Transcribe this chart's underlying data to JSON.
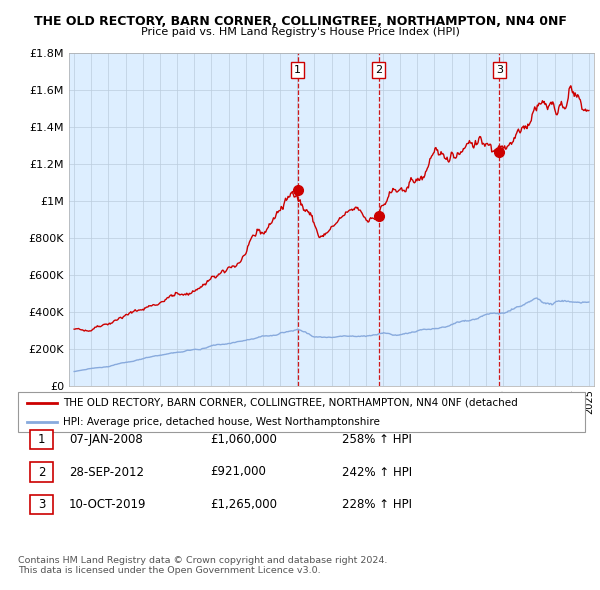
{
  "title": "THE OLD RECTORY, BARN CORNER, COLLINGTREE, NORTHAMPTON, NN4 0NF",
  "subtitle": "Price paid vs. HM Land Registry's House Price Index (HPI)",
  "ylim": [
    0,
    1800000
  ],
  "yticks": [
    0,
    200000,
    400000,
    600000,
    800000,
    1000000,
    1200000,
    1400000,
    1600000,
    1800000
  ],
  "ytick_labels": [
    "£0",
    "£200K",
    "£400K",
    "£600K",
    "£800K",
    "£1M",
    "£1.2M",
    "£1.4M",
    "£1.6M",
    "£1.8M"
  ],
  "sale_dates": [
    2008.03,
    2012.75,
    2019.78
  ],
  "sale_prices": [
    1060000,
    921000,
    1265000
  ],
  "sale_labels": [
    "1",
    "2",
    "3"
  ],
  "red_line_color": "#cc0000",
  "blue_line_color": "#88aadd",
  "vline_color": "#cc0000",
  "grid_color": "#bbccdd",
  "bg_color": "#ddeeff",
  "legend_entries": [
    "THE OLD RECTORY, BARN CORNER, COLLINGTREE, NORTHAMPTON, NN4 0NF (detached",
    "HPI: Average price, detached house, West Northamptonshire"
  ],
  "table_rows": [
    [
      "1",
      "07-JAN-2008",
      "£1,060,000",
      "258% ↑ HPI"
    ],
    [
      "2",
      "28-SEP-2012",
      "£921,000",
      "242% ↑ HPI"
    ],
    [
      "3",
      "10-OCT-2019",
      "£1,265,000",
      "228% ↑ HPI"
    ]
  ],
  "footer": "Contains HM Land Registry data © Crown copyright and database right 2024.\nThis data is licensed under the Open Government Licence v3.0."
}
